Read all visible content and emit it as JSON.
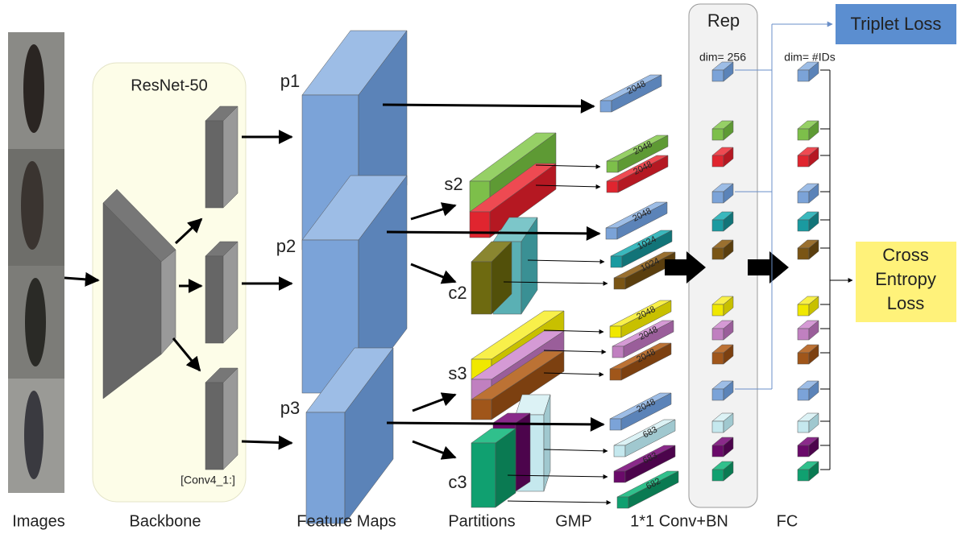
{
  "backbone": {
    "title": "ResNet-50",
    "layer": "[Conv4_1:]"
  },
  "feature_maps": [
    "p1",
    "p2",
    "p3"
  ],
  "partitions": [
    "s2",
    "c2",
    "s3",
    "c3"
  ],
  "gmp_dims": [
    2048,
    2048,
    2048,
    2048,
    1024,
    1024,
    2048,
    2048,
    2048,
    2048,
    683,
    683,
    682
  ],
  "rep": {
    "title": "Rep",
    "dim": "dim= 256"
  },
  "fc": {
    "dim": "dim= #IDs"
  },
  "losses": {
    "triplet": "Triplet Loss",
    "cross_entropy": [
      "Cross",
      "Entropy",
      "Loss"
    ]
  },
  "stages": [
    "Images",
    "Backbone",
    "Feature Maps",
    "Partitions",
    "GMP",
    "1*1 Conv+BN",
    "FC"
  ]
}
